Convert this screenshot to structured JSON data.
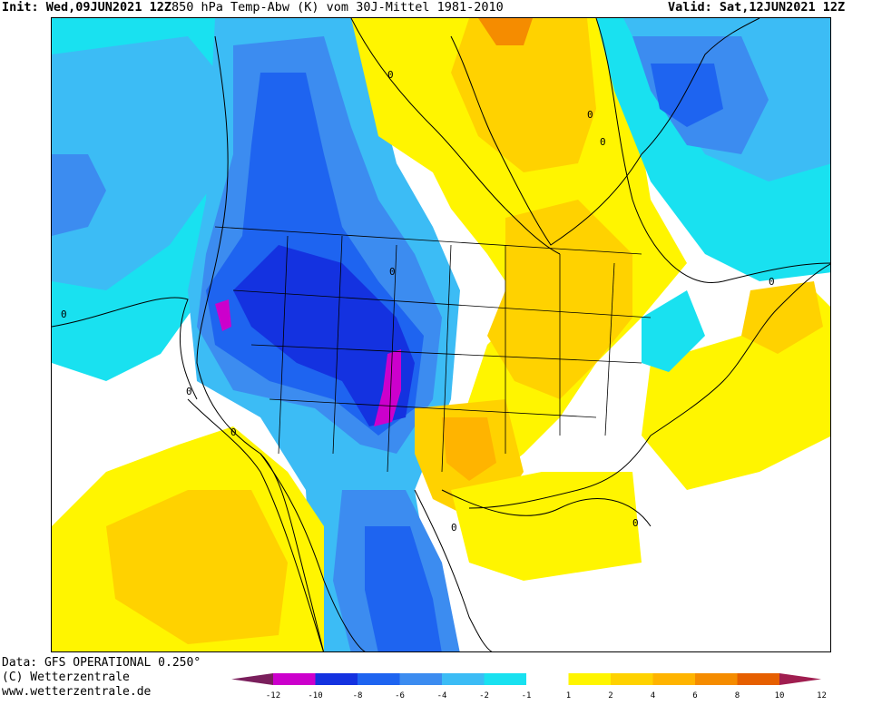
{
  "header": {
    "init_label": "Init:",
    "init_value": "Wed,09JUN2021 12Z",
    "product": "850 hPa Temp-Abw (K) vom 30J-Mittel 1981-2010",
    "valid_label": "Valid:",
    "valid_value": "Sat,12JUN2021 12Z"
  },
  "credits": {
    "line1": "Data: GFS OPERATIONAL 0.250°",
    "line2": "(C) Wetterzentrale",
    "line3": "www.wetterzentrale.de"
  },
  "legend": {
    "ticks": [
      "-12",
      "-10",
      "-8",
      "-6",
      "-4",
      "-2",
      "-1",
      "1",
      "2",
      "4",
      "6",
      "8",
      "10",
      "12"
    ],
    "colors": [
      "#7a1f5c",
      "#cc00cc",
      "#1432e0",
      "#1e64f0",
      "#3c8cf0",
      "#3cbcf5",
      "#19e1f0",
      "#ffffff",
      "#fff500",
      "#ffd200",
      "#ffb400",
      "#f58c00",
      "#e65f00",
      "#a01e50"
    ]
  },
  "map": {
    "region": "North America",
    "contour_labels": [
      "0",
      "0",
      "0",
      "0",
      "0",
      "0",
      "0",
      "0",
      "0",
      "0"
    ]
  }
}
